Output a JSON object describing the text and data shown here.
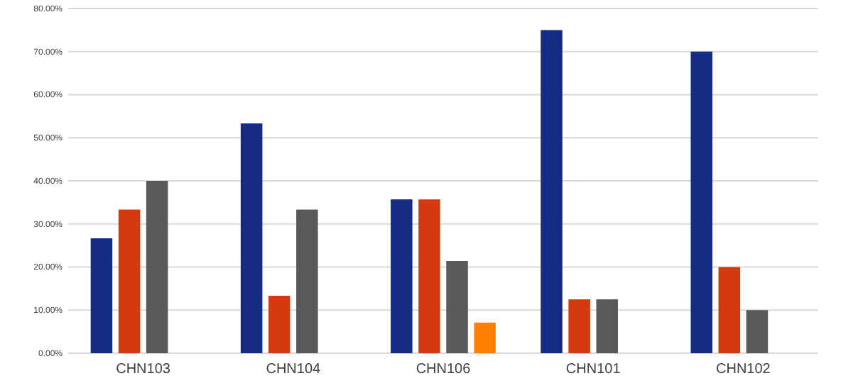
{
  "chart_data": {
    "type": "bar",
    "categories": [
      "CHN103",
      "CHN104",
      "CHN106",
      "CHN101",
      "CHN102"
    ],
    "series": [
      {
        "color": "#142c84",
        "values": [
          26.67,
          53.33,
          35.7,
          75,
          70
        ]
      },
      {
        "color": "#d5390f",
        "values": [
          33.33,
          13.33,
          35.7,
          12.5,
          20
        ]
      },
      {
        "color": "#595959",
        "values": [
          40,
          33.33,
          21.4,
          12.5,
          10
        ]
      },
      {
        "color": "#ff8000",
        "values": [
          null,
          null,
          7.1,
          null,
          null
        ]
      }
    ],
    "ylim": [
      0,
      80
    ],
    "yticks": [
      {
        "value": 0,
        "label": "0.00%"
      },
      {
        "value": 10,
        "label": "10.00%"
      },
      {
        "value": 20,
        "label": "20.00%"
      },
      {
        "value": 30,
        "label": "30.00%"
      },
      {
        "value": 40,
        "label": "40.00%"
      },
      {
        "value": 50,
        "label": "50.00%"
      },
      {
        "value": 60,
        "label": "60.00%"
      },
      {
        "value": 70,
        "label": "70.00%"
      },
      {
        "value": 80,
        "label": "80.00%"
      }
    ],
    "grid": "y"
  }
}
